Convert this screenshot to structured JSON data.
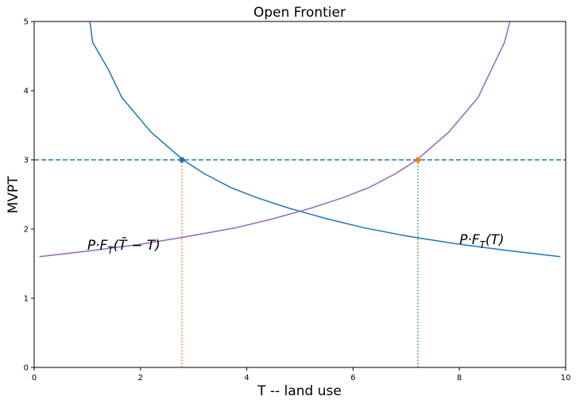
{
  "chart_data": {
    "type": "line",
    "title": "Open Frontier",
    "xlabel": "T -- land use",
    "ylabel": "MVPT",
    "xlim": [
      0,
      10
    ],
    "ylim": [
      0,
      5
    ],
    "xticks": [
      0,
      2,
      4,
      6,
      8,
      10
    ],
    "yticks": [
      0,
      1,
      2,
      3,
      4,
      5
    ],
    "grid": false,
    "series": [
      {
        "color": "#1f77b4",
        "style": "solid",
        "x": [
          1.05,
          1.1,
          1.4,
          1.65,
          2.2,
          2.8,
          3.2,
          3.7,
          4.2,
          4.8,
          5.5,
          6.2,
          7.0,
          8.0,
          9.0,
          9.9
        ],
        "y": [
          5.0,
          4.7,
          4.3,
          3.9,
          3.4,
          3.0,
          2.8,
          2.6,
          2.45,
          2.3,
          2.15,
          2.02,
          1.9,
          1.78,
          1.68,
          1.6
        ]
      },
      {
        "color": "#9467bd",
        "style": "solid",
        "x": [
          0.1,
          1.0,
          2.0,
          2.8,
          3.8,
          4.5,
          5.2,
          5.8,
          6.3,
          6.8,
          7.2,
          7.8,
          8.35,
          8.85,
          8.95
        ],
        "y": [
          1.6,
          1.68,
          1.78,
          1.88,
          2.02,
          2.15,
          2.3,
          2.45,
          2.6,
          2.8,
          3.0,
          3.4,
          3.9,
          4.7,
          5.0
        ]
      },
      {
        "color": "#1f77b4",
        "style": "dashed",
        "x": [
          0,
          10
        ],
        "y": [
          3,
          3
        ]
      },
      {
        "color": "#ff7f0e",
        "style": "dotted",
        "x": [
          2.78,
          2.78
        ],
        "y": [
          0,
          3
        ]
      },
      {
        "color": "#2ca02c",
        "style": "dotted",
        "x": [
          7.22,
          7.22
        ],
        "y": [
          0,
          3
        ]
      }
    ],
    "points": [
      {
        "x": 2.78,
        "y": 3.0,
        "color": "#1f77b4"
      },
      {
        "x": 7.22,
        "y": 3.0,
        "color": "#ff7f0e"
      }
    ],
    "annotations": [
      {
        "x": 1.0,
        "y": 1.7,
        "text_main": "P·F",
        "text_sub": "T",
        "text_rest": "(T̄ − T)"
      },
      {
        "x": 8.0,
        "y": 1.78,
        "text_main": "P·F",
        "text_sub": "T",
        "text_rest": "(T)"
      }
    ]
  }
}
